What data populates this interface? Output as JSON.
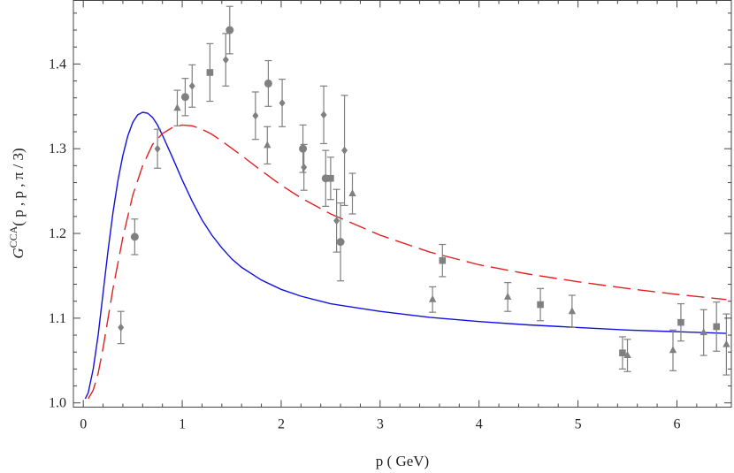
{
  "chart_data": {
    "type": "scatter",
    "xlabel": "p ( GeV)",
    "ylabel": {
      "prefix": "G",
      "superscript": "CCA",
      "args": "( p , p , π / 3)"
    },
    "xlim": [
      -0.1,
      6.55
    ],
    "ylim": [
      0.995,
      1.475
    ],
    "xticks": [
      0,
      1,
      2,
      3,
      4,
      5,
      6
    ],
    "yticks": [
      1.0,
      1.1,
      1.2,
      1.3,
      1.4
    ],
    "ytick_labels": [
      "1.0",
      "1.1",
      "1.2",
      "1.3",
      "1.4"
    ],
    "grid": false,
    "series": [
      {
        "kind": "line",
        "style": "solid",
        "color": "#1010e0",
        "x": [
          0.02,
          0.05,
          0.1,
          0.15,
          0.2,
          0.25,
          0.3,
          0.35,
          0.4,
          0.45,
          0.5,
          0.55,
          0.6,
          0.65,
          0.7,
          0.75,
          0.8,
          0.9,
          1.0,
          1.1,
          1.2,
          1.3,
          1.4,
          1.5,
          1.6,
          1.8,
          2.0,
          2.2,
          2.5,
          3.0,
          3.5,
          4.0,
          4.5,
          5.0,
          5.5,
          6.0,
          6.5
        ],
        "y": [
          1.005,
          1.012,
          1.04,
          1.08,
          1.13,
          1.18,
          1.225,
          1.262,
          1.292,
          1.315,
          1.331,
          1.34,
          1.343,
          1.342,
          1.337,
          1.328,
          1.316,
          1.29,
          1.263,
          1.238,
          1.216,
          1.198,
          1.183,
          1.17,
          1.16,
          1.145,
          1.134,
          1.126,
          1.117,
          1.108,
          1.101,
          1.096,
          1.092,
          1.089,
          1.086,
          1.084,
          1.082
        ]
      },
      {
        "kind": "line",
        "style": "dashed",
        "color": "#e02020",
        "x": [
          0.05,
          0.1,
          0.15,
          0.2,
          0.25,
          0.3,
          0.4,
          0.5,
          0.6,
          0.7,
          0.8,
          0.9,
          1.0,
          1.1,
          1.2,
          1.3,
          1.4,
          1.6,
          1.8,
          2.0,
          2.2,
          2.5,
          3.0,
          3.5,
          4.0,
          4.5,
          5.0,
          5.5,
          6.0,
          6.5
        ],
        "y": [
          1.005,
          1.015,
          1.035,
          1.065,
          1.1,
          1.135,
          1.195,
          1.245,
          1.28,
          1.305,
          1.318,
          1.325,
          1.328,
          1.327,
          1.323,
          1.317,
          1.309,
          1.292,
          1.274,
          1.257,
          1.242,
          1.223,
          1.198,
          1.178,
          1.163,
          1.152,
          1.143,
          1.135,
          1.128,
          1.122
        ]
      },
      {
        "kind": "points",
        "marker": "circle",
        "color": "#808080",
        "points": [
          {
            "x": 0.52,
            "y": 1.196,
            "err": 0.021
          },
          {
            "x": 1.03,
            "y": 1.361,
            "err": 0.022
          },
          {
            "x": 1.48,
            "y": 1.44,
            "err": 0.028
          },
          {
            "x": 1.87,
            "y": 1.377,
            "err": 0.027
          },
          {
            "x": 2.22,
            "y": 1.3,
            "err": 0.028
          },
          {
            "x": 2.45,
            "y": 1.265,
            "err": 0.033
          },
          {
            "x": 2.6,
            "y": 1.19,
            "err": 0.046
          }
        ]
      },
      {
        "kind": "points",
        "marker": "square",
        "color": "#808080",
        "points": [
          {
            "x": 1.28,
            "y": 1.39,
            "err": 0.034
          },
          {
            "x": 2.5,
            "y": 1.265,
            "err": 0.025
          },
          {
            "x": 3.63,
            "y": 1.168,
            "err": 0.019
          },
          {
            "x": 4.62,
            "y": 1.116,
            "err": 0.019
          },
          {
            "x": 5.45,
            "y": 1.059,
            "err": 0.019
          },
          {
            "x": 6.04,
            "y": 1.095,
            "err": 0.022
          },
          {
            "x": 6.4,
            "y": 1.09,
            "err": 0.029
          }
        ]
      },
      {
        "kind": "points",
        "marker": "diamond",
        "color": "#808080",
        "points": [
          {
            "x": 0.38,
            "y": 1.089,
            "err": 0.019
          },
          {
            "x": 0.75,
            "y": 1.3,
            "err": 0.023
          },
          {
            "x": 1.1,
            "y": 1.374,
            "err": 0.025
          },
          {
            "x": 1.44,
            "y": 1.405,
            "err": 0.031
          },
          {
            "x": 1.74,
            "y": 1.339,
            "err": 0.028
          },
          {
            "x": 2.01,
            "y": 1.354,
            "err": 0.028
          },
          {
            "x": 2.23,
            "y": 1.278,
            "err": 0.027
          },
          {
            "x": 2.43,
            "y": 1.34,
            "err": 0.034
          },
          {
            "x": 2.56,
            "y": 1.215,
            "err": 0.037
          },
          {
            "x": 2.64,
            "y": 1.298,
            "err": 0.065
          }
        ]
      },
      {
        "kind": "points",
        "marker": "triangle",
        "color": "#808080",
        "points": [
          {
            "x": 0.95,
            "y": 1.348,
            "err": 0.021
          },
          {
            "x": 1.86,
            "y": 1.304,
            "err": 0.022
          },
          {
            "x": 2.72,
            "y": 1.247,
            "err": 0.024
          },
          {
            "x": 3.53,
            "y": 1.122,
            "err": 0.015
          },
          {
            "x": 4.29,
            "y": 1.125,
            "err": 0.017
          },
          {
            "x": 4.94,
            "y": 1.108,
            "err": 0.019
          },
          {
            "x": 5.5,
            "y": 1.056,
            "err": 0.019
          },
          {
            "x": 5.96,
            "y": 1.062,
            "err": 0.024
          },
          {
            "x": 6.27,
            "y": 1.083,
            "err": 0.027
          },
          {
            "x": 6.5,
            "y": 1.069,
            "err": 0.036
          }
        ]
      }
    ]
  }
}
